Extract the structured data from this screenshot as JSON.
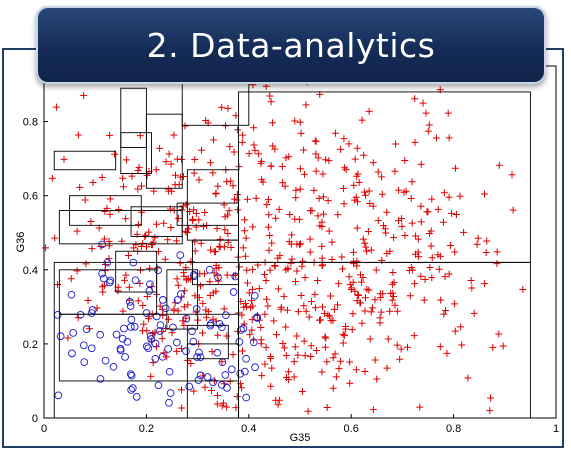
{
  "banner": {
    "title": "2. Data-analytics"
  },
  "chart_data": {
    "type": "scatter",
    "xlabel": "G35",
    "ylabel": "G36",
    "xlim": [
      0,
      1
    ],
    "ylim": [
      0,
      0.95
    ],
    "xticks": [
      "0",
      "0.2",
      "0.4",
      "0.6",
      "0.8",
      "1"
    ],
    "yticks": [
      "0",
      "0.2",
      "0.4",
      "0.6",
      "0.8"
    ],
    "grid": false,
    "series": [
      {
        "marker": "plus",
        "color": "#e00000",
        "count": 700,
        "note_region": {
          "x": [
            0.0,
            0.95
          ],
          "y": [
            0.0,
            0.92
          ]
        }
      },
      {
        "marker": "circle",
        "color": "#1a1acc",
        "count": 110,
        "note_region": {
          "x": [
            0.02,
            0.42
          ],
          "y": [
            0.0,
            0.5
          ]
        }
      }
    ],
    "boxes": [
      [
        0.02,
        0.0,
        0.38,
        0.42
      ],
      [
        0.03,
        0.1,
        0.38,
        0.28
      ],
      [
        0.38,
        0.42,
        0.95,
        0.88
      ],
      [
        0.38,
        0.0,
        0.95,
        0.42
      ],
      [
        0.02,
        0.67,
        0.14,
        0.72
      ],
      [
        0.05,
        0.52,
        0.19,
        0.6
      ],
      [
        0.03,
        0.47,
        0.27,
        0.56
      ],
      [
        0.03,
        0.28,
        0.22,
        0.4
      ],
      [
        0.15,
        0.73,
        0.2,
        0.89
      ],
      [
        0.15,
        0.66,
        0.21,
        0.77
      ],
      [
        0.2,
        0.62,
        0.27,
        0.82
      ],
      [
        0.17,
        0.49,
        0.27,
        0.57
      ],
      [
        0.28,
        0.48,
        0.38,
        0.67
      ],
      [
        0.29,
        0.36,
        0.38,
        0.48
      ],
      [
        0.28,
        0.16,
        0.36,
        0.25
      ],
      [
        0.28,
        0.0,
        0.38,
        0.2
      ],
      [
        0.24,
        0.24,
        0.3,
        0.4
      ],
      [
        0.14,
        0.34,
        0.22,
        0.45
      ],
      [
        0.26,
        0.52,
        0.38,
        0.58
      ],
      [
        0.27,
        0.79,
        0.4,
        0.92
      ]
    ]
  }
}
